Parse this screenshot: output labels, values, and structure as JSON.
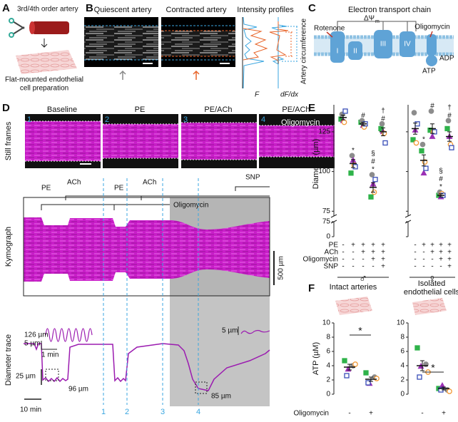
{
  "panel_a": {
    "label": "A",
    "top_text": "3rd/4th order artery",
    "bottom_text": [
      "Flat-mounted endothelial",
      "cell preparation"
    ]
  },
  "panel_b": {
    "label": "B",
    "titles": [
      "Quiescent artery",
      "Contracted artery",
      "Intensity profiles"
    ],
    "profile_axis_labels": [
      "F",
      "dF/dx"
    ],
    "side_label": "Artery circumference"
  },
  "panel_c": {
    "label": "C",
    "title": "Electron transport chain",
    "rotenone": "Rotenone",
    "delta_psi": "ΔΨ",
    "delta_psi_sub": "m",
    "oligomycin": "Oligomycin",
    "complexes": [
      "I",
      "II",
      "III",
      "IV"
    ],
    "adp": "ADP",
    "atp": "ATP"
  },
  "panel_d": {
    "label": "D",
    "frame_numbers": [
      "1",
      "2",
      "3",
      "4"
    ],
    "frame_titles": [
      "Baseline",
      "PE",
      "PE/ACh",
      "PE/ACh"
    ],
    "frame4_extra": "Oligomycin",
    "still_label": "Still frames",
    "events": [
      "PE",
      "ACh",
      "PE",
      "ACh",
      "SNP"
    ],
    "kymograph_label": "Kymograph",
    "kymograph_overlay": "Oligomycin",
    "kymograph_scale": "500 µm",
    "trace_label": "Diameter trace",
    "trace_annotations": [
      "126 µm",
      "96 µm",
      "85 µm"
    ],
    "inset1_scale": [
      "5 µm",
      "1 min"
    ],
    "inset2_scale": "5 µm",
    "trace_scale": [
      "25 µm",
      "10 min"
    ],
    "markers": [
      "1",
      "2",
      "3",
      "4"
    ]
  },
  "panel_e": {
    "label": "E",
    "y_label": "Diameter (µm)",
    "ylim": [
      72,
      142
    ],
    "yticks": [
      75,
      100,
      125
    ],
    "lower_ylim": [
      0,
      75
    ],
    "lower_yticks": [
      0,
      75
    ],
    "markers": [
      {
        "shape": "square",
        "color": "#2fb34a",
        "filled": true
      },
      {
        "shape": "circle",
        "color": "#8c8c8c",
        "filled": true
      },
      {
        "shape": "triangle",
        "color": "#9b30b5",
        "filled": true
      },
      {
        "shape": "circle",
        "color": "#f29a38",
        "filled": false
      },
      {
        "shape": "square",
        "color": "#3a4fb8",
        "filled": false
      }
    ],
    "conditions": [
      {
        "name": "PE",
        "signs": [
          "-",
          "+",
          "+",
          "+",
          "+"
        ]
      },
      {
        "name": "ACh",
        "signs": [
          "-",
          "-",
          "+",
          "+",
          "+"
        ]
      },
      {
        "name": "Oligomycin",
        "signs": [
          "-",
          "-",
          "-",
          "+",
          "+"
        ]
      },
      {
        "name": "SNP",
        "signs": [
          "-",
          "-",
          "-",
          "-",
          "+"
        ]
      }
    ],
    "groups": [
      {
        "sex": "♂",
        "means": [
          134,
          105,
          130,
          90,
          125
        ],
        "sems": [
          1.5,
          2.5,
          1,
          3,
          2.5
        ],
        "points": [
          [
            133,
            136,
            132,
            131,
            138
          ],
          [
            99,
            110,
            107,
            104,
            103
          ],
          [
            131,
            132,
            129,
            128,
            130
          ],
          [
            84,
            98,
            92,
            87,
            95
          ],
          [
            127,
            130,
            125,
            124,
            118
          ]
        ],
        "annotations": [
          [],
          [
            "*"
          ],
          [
            "#"
          ],
          [
            "§",
            "#",
            "*"
          ],
          [
            "†",
            "#"
          ]
        ]
      },
      {
        "sex": "♀",
        "means": [
          127,
          107,
          127,
          85,
          122
        ],
        "sems": [
          3.5,
          3.5,
          3,
          1,
          3
        ],
        "points": [
          [
            120,
            137,
            126,
            118,
            130
          ],
          [
            113,
            117,
            99,
            106,
            102
          ],
          [
            126,
            138,
            122,
            125,
            125
          ],
          [
            85,
            87,
            84,
            86,
            85
          ],
          [
            127,
            132,
            122,
            117,
            115
          ]
        ],
        "annotations": [
          [],
          [
            "*"
          ],
          [
            "#"
          ],
          [
            "§",
            "#",
            "*"
          ],
          [
            "†",
            "#"
          ]
        ]
      }
    ]
  },
  "panel_f": {
    "label": "F",
    "y_label": "ATP (µM)",
    "ylim": [
      0,
      10
    ],
    "yticks": [
      0,
      2,
      4,
      6,
      8,
      10
    ],
    "x_label": "Oligomycin",
    "x_signs": [
      "-",
      "+"
    ],
    "groups": [
      {
        "title": [
          "Intact arteries"
        ],
        "means": [
          3.8,
          2.1
        ],
        "sems": [
          0.4,
          0.3
        ],
        "points": [
          [
            4.7,
            4.0,
            3.5,
            4.2,
            2.6
          ],
          [
            3.0,
            2.4,
            1.5,
            2.2,
            1.6
          ]
        ],
        "significance": "*"
      },
      {
        "title": [
          "Isolated",
          "endothelial cells"
        ],
        "means": [
          4.0,
          0.8
        ],
        "sems": [
          0.7,
          0.2
        ],
        "points": [
          [
            6.5,
            4.2,
            3.9,
            3.1,
            2.4
          ],
          [
            0.8,
            0.6,
            1.2,
            0.4,
            0.6
          ]
        ],
        "significance": "*"
      }
    ]
  }
}
